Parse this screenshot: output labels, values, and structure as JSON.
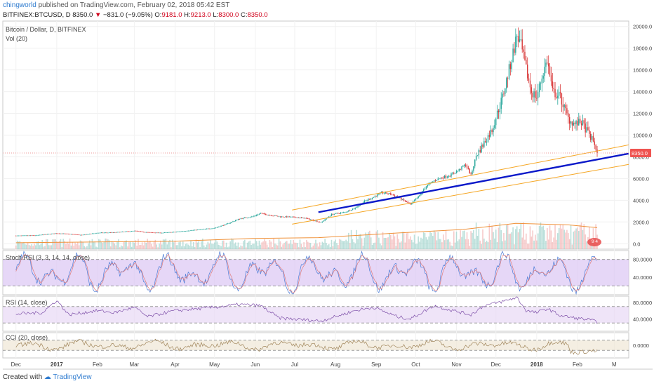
{
  "header": {
    "author": "chingworld",
    "published_text": "published on TradingView.com, February 02, 2018 05:42 EST",
    "symbol": "BITFINEX:BTCUSD, D",
    "last": "8350.0",
    "change": "−831.0 (−9.05%)",
    "o_label": "O:",
    "o": "9181.0",
    "h_label": "H:",
    "h": "9213.0",
    "l_label": "L:",
    "l": "8300.0",
    "c_label": "C:",
    "c": "8350.0"
  },
  "footer": {
    "created_with": "Created with",
    "brand": "TradingView"
  },
  "colors": {
    "up": "#26a69a",
    "down": "#d93a3a",
    "channel": "#f5a623",
    "trend": "#0a18c9",
    "rsi_band": "#e8d9f5",
    "cci_band": "#efe7d6",
    "price_tag": "#ef5350"
  },
  "chart_data": [
    {
      "type": "candlestick",
      "title": "Bitcoin / Dollar, D, BITFINEX",
      "volume_label": "Vol (20)",
      "ylim": [
        -500,
        20500
      ],
      "y_ticks": [
        "20000.0",
        "18000.0",
        "16000.0",
        "14000.0",
        "12000.0",
        "10000.0",
        "8000.0",
        "6000.0",
        "4000.0",
        "2000.0",
        "0.0"
      ],
      "last_price_label": "8350.0",
      "last_price": 8350,
      "x_ticks": [
        "Dec",
        "2017",
        "Feb",
        "Mar",
        "Apr",
        "May",
        "Jun",
        "Jul",
        "Aug",
        "Sep",
        "Oct",
        "Nov",
        "Dec",
        "2018",
        "Feb",
        "M"
      ],
      "x_tick_days": [
        0,
        31,
        62,
        90,
        121,
        151,
        182,
        212,
        243,
        274,
        304,
        335,
        365,
        396,
        427,
        455
      ],
      "x_range_days": [
        -10,
        466
      ],
      "price_path": [
        [
          0,
          740
        ],
        [
          15,
          770
        ],
        [
          31,
          960
        ],
        [
          40,
          900
        ],
        [
          50,
          800
        ],
        [
          62,
          1000
        ],
        [
          75,
          1040
        ],
        [
          90,
          1180
        ],
        [
          100,
          1050
        ],
        [
          110,
          1000
        ],
        [
          121,
          1080
        ],
        [
          130,
          1200
        ],
        [
          140,
          1300
        ],
        [
          151,
          1450
        ],
        [
          160,
          1800
        ],
        [
          170,
          2300
        ],
        [
          180,
          2500
        ],
        [
          186,
          2800
        ],
        [
          190,
          2700
        ],
        [
          200,
          2500
        ],
        [
          210,
          2450
        ],
        [
          220,
          2350
        ],
        [
          228,
          2100
        ],
        [
          232,
          1950
        ],
        [
          240,
          2700
        ],
        [
          250,
          2900
        ],
        [
          258,
          3300
        ],
        [
          265,
          3900
        ],
        [
          272,
          4300
        ],
        [
          278,
          4700
        ],
        [
          284,
          4600
        ],
        [
          290,
          4300
        ],
        [
          296,
          3900
        ],
        [
          300,
          3600
        ],
        [
          306,
          4300
        ],
        [
          312,
          5300
        ],
        [
          318,
          5800
        ],
        [
          324,
          6100
        ],
        [
          330,
          6300
        ],
        [
          336,
          6700
        ],
        [
          342,
          7300
        ],
        [
          346,
          6300
        ],
        [
          350,
          8100
        ],
        [
          356,
          9300
        ],
        [
          362,
          10500
        ],
        [
          370,
          13500
        ],
        [
          376,
          16500
        ],
        [
          381,
          19200
        ],
        [
          384,
          18200
        ],
        [
          388,
          16000
        ],
        [
          392,
          14000
        ],
        [
          396,
          13500
        ],
        [
          401,
          15800
        ],
        [
          404,
          16900
        ],
        [
          408,
          14000
        ],
        [
          414,
          13500
        ],
        [
          420,
          11500
        ],
        [
          425,
          11000
        ],
        [
          430,
          11200
        ],
        [
          436,
          10000
        ],
        [
          440,
          9200
        ],
        [
          442,
          8350
        ]
      ],
      "volume_range_k": [
        0,
        150000
      ],
      "volume_ma_path": [
        [
          0,
          18
        ],
        [
          60,
          20
        ],
        [
          120,
          22
        ],
        [
          180,
          30
        ],
        [
          230,
          32
        ],
        [
          290,
          45
        ],
        [
          340,
          55
        ],
        [
          380,
          72
        ],
        [
          420,
          68
        ],
        [
          442,
          60
        ]
      ],
      "channel_upper": [
        [
          210,
          3100
        ],
        [
          466,
          9100
        ]
      ],
      "channel_lower": [
        [
          210,
          1800
        ],
        [
          466,
          7300
        ]
      ],
      "trendline": [
        [
          230,
          2900
        ],
        [
          466,
          8300
        ]
      ],
      "marker_text": "9 4"
    },
    {
      "type": "line",
      "title": "Stoch RSI (3, 3, 14, 14, close)",
      "ylim": [
        0,
        100
      ],
      "y_ticks": [
        "80.0000",
        "40.0000"
      ],
      "y_tick_values": [
        80,
        40
      ],
      "band": [
        20,
        80
      ]
    },
    {
      "type": "line",
      "title": "RSI (14, close)",
      "ylim": [
        10,
        95
      ],
      "y_ticks": [
        "80.0000",
        "40.0000"
      ],
      "y_tick_values": [
        80,
        40
      ],
      "band": [
        30,
        70
      ],
      "path": [
        [
          0,
          52
        ],
        [
          20,
          55
        ],
        [
          31,
          85
        ],
        [
          40,
          50
        ],
        [
          62,
          60
        ],
        [
          75,
          55
        ],
        [
          90,
          68
        ],
        [
          100,
          45
        ],
        [
          121,
          60
        ],
        [
          151,
          68
        ],
        [
          170,
          75
        ],
        [
          186,
          72
        ],
        [
          200,
          42
        ],
        [
          232,
          35
        ],
        [
          258,
          60
        ],
        [
          272,
          68
        ],
        [
          290,
          45
        ],
        [
          300,
          40
        ],
        [
          318,
          72
        ],
        [
          330,
          62
        ],
        [
          346,
          50
        ],
        [
          356,
          72
        ],
        [
          370,
          82
        ],
        [
          381,
          92
        ],
        [
          388,
          60
        ],
        [
          396,
          55
        ],
        [
          404,
          65
        ],
        [
          414,
          48
        ],
        [
          425,
          42
        ],
        [
          436,
          38
        ],
        [
          442,
          32
        ]
      ]
    },
    {
      "type": "line",
      "title": "CCI (20, close)",
      "ylim": [
        -250,
        250
      ],
      "y_ticks": [
        "0.0000"
      ],
      "y_tick_values": [
        0
      ],
      "band": [
        -100,
        100
      ]
    }
  ]
}
